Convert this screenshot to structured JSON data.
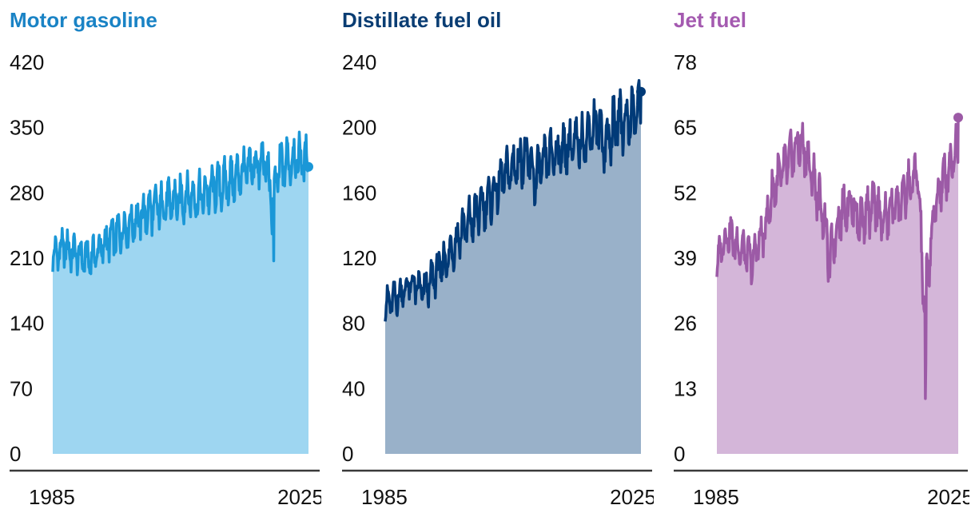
{
  "chart_data": [
    {
      "type": "area",
      "title": "Motor gasoline",
      "color_line": "#1a97d7",
      "color_fill": "#9ed6f1",
      "yticks": [
        "0",
        "70",
        "140",
        "210",
        "280",
        "350",
        "420"
      ],
      "ylim": [
        0,
        420
      ],
      "xlim": [
        1985,
        2025.8
      ],
      "xtick_labels": [
        "1985",
        "2025"
      ],
      "x": [
        1985,
        1986,
        1987,
        1988,
        1989,
        1990,
        1991,
        1992,
        1993,
        1994,
        1995,
        1996,
        1997,
        1998,
        1999,
        2000,
        2001,
        2002,
        2003,
        2004,
        2005,
        2006,
        2007,
        2008,
        2009,
        2010,
        2011,
        2012,
        2013,
        2014,
        2015,
        2016,
        2017,
        2018,
        2019,
        2020,
        2021,
        2022,
        2023,
        2024,
        2025
      ],
      "values": [
        212,
        218,
        222,
        216,
        214,
        208,
        210,
        216,
        222,
        230,
        234,
        240,
        246,
        250,
        254,
        258,
        262,
        266,
        268,
        270,
        272,
        275,
        278,
        274,
        278,
        282,
        286,
        288,
        292,
        296,
        300,
        304,
        308,
        310,
        314,
        262,
        306,
        312,
        316,
        318,
        314
      ],
      "seasonal_amplitude": [
        22,
        24,
        24,
        24,
        26,
        26,
        24,
        26,
        28,
        28,
        28,
        28,
        28,
        30,
        30,
        30,
        30,
        30,
        30,
        30,
        30,
        30,
        30,
        30,
        30,
        30,
        30,
        30,
        30,
        30,
        30,
        30,
        32,
        32,
        34,
        30,
        34,
        32,
        34,
        34,
        30
      ],
      "last_point": 308
    },
    {
      "type": "area",
      "title": "Distillate fuel oil",
      "color_line": "#003a78",
      "color_fill": "#99b1c9",
      "yticks": [
        "0",
        "40",
        "80",
        "120",
        "160",
        "200",
        "240"
      ],
      "ylim": [
        0,
        240
      ],
      "xlim": [
        1985,
        2025.8
      ],
      "xtick_labels": [
        "1985",
        "2025"
      ],
      "x": [
        1985,
        1986,
        1987,
        1988,
        1989,
        1990,
        1991,
        1992,
        1993,
        1994,
        1995,
        1996,
        1997,
        1998,
        1999,
        2000,
        2001,
        2002,
        2003,
        2004,
        2005,
        2006,
        2007,
        2008,
        2009,
        2010,
        2011,
        2012,
        2013,
        2014,
        2015,
        2016,
        2017,
        2018,
        2019,
        2020,
        2021,
        2022,
        2023,
        2024,
        2025
      ],
      "values": [
        92,
        94,
        96,
        100,
        104,
        102,
        100,
        104,
        110,
        116,
        120,
        128,
        136,
        140,
        144,
        150,
        154,
        158,
        164,
        170,
        174,
        178,
        182,
        178,
        168,
        176,
        182,
        184,
        186,
        188,
        190,
        190,
        194,
        200,
        202,
        190,
        196,
        204,
        204,
        206,
        210
      ],
      "seasonal_amplitude": [
        12,
        12,
        12,
        12,
        14,
        14,
        14,
        14,
        16,
        16,
        16,
        16,
        18,
        18,
        18,
        18,
        18,
        18,
        18,
        18,
        20,
        20,
        20,
        20,
        20,
        18,
        18,
        18,
        18,
        18,
        18,
        18,
        18,
        20,
        20,
        20,
        22,
        22,
        22,
        22,
        22
      ],
      "last_point": 222
    },
    {
      "type": "area",
      "title": "Jet fuel",
      "color_line": "#9c5aa6",
      "color_fill": "#d4b6d9",
      "yticks": [
        "0",
        "13",
        "26",
        "39",
        "52",
        "65",
        "78"
      ],
      "ylim": [
        0,
        78
      ],
      "xlim": [
        1985,
        2025.8
      ],
      "xtick_labels": [
        "1985",
        "2025"
      ],
      "x": [
        1985,
        1986,
        1987,
        1988,
        1989,
        1990,
        1991,
        1992,
        1993,
        1994,
        1995,
        1996,
        1997,
        1998,
        1999,
        2000,
        2001,
        2002,
        2003,
        2004,
        2005,
        2006,
        2007,
        2008,
        2009,
        2010,
        2011,
        2012,
        2013,
        2014,
        2015,
        2016,
        2017,
        2018,
        2019,
        2020,
        2021,
        2022,
        2023,
        2024,
        2025
      ],
      "values": [
        38,
        42,
        44,
        42,
        41,
        40,
        38,
        42,
        44,
        50,
        54,
        56,
        58,
        60,
        62,
        60,
        56,
        52,
        48,
        38,
        44,
        48,
        50,
        50,
        46,
        48,
        48,
        50,
        46,
        48,
        50,
        50,
        52,
        54,
        56,
        30,
        40,
        50,
        54,
        56,
        60
      ],
      "seasonal_amplitude": [
        4,
        4,
        5,
        5,
        5,
        5,
        5,
        5,
        6,
        6,
        6,
        6,
        6,
        6,
        6,
        6,
        6,
        6,
        6,
        6,
        6,
        6,
        6,
        6,
        6,
        6,
        6,
        6,
        6,
        6,
        6,
        6,
        6,
        6,
        6,
        6,
        6,
        6,
        6,
        6,
        6
      ],
      "last_point": 67
    }
  ]
}
